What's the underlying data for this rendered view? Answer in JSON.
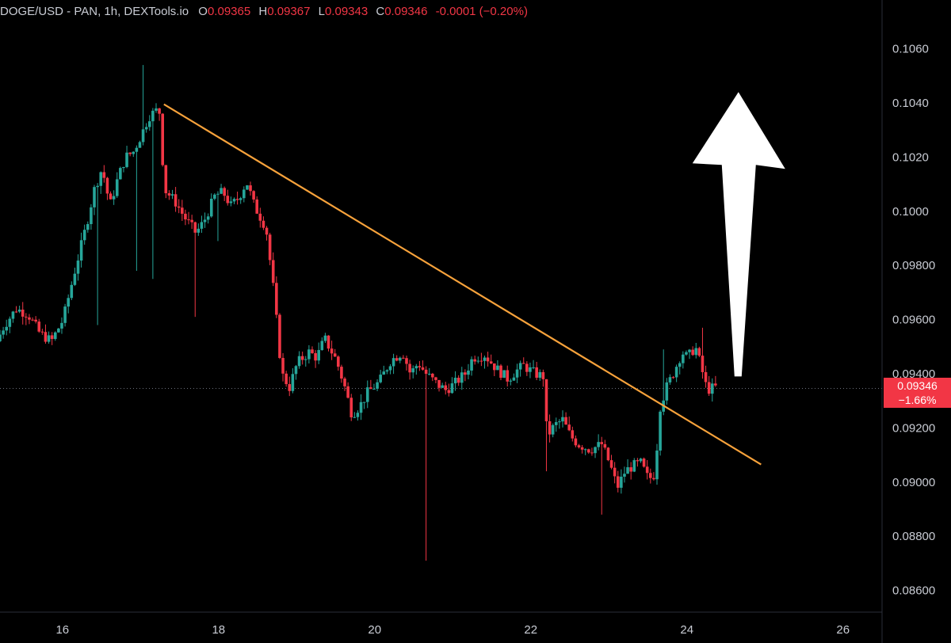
{
  "header": {
    "symbol": "DOGE/USD - PAN, 1h, DEXTools.io",
    "o_label": "O",
    "o_value": "0.09365",
    "h_label": "H",
    "h_value": "0.09367",
    "l_label": "L",
    "l_value": "0.09343",
    "c_label": "C",
    "c_value": "0.09346",
    "change": "-0.0001 (−0.20%)"
  },
  "price_tag": {
    "price": "0.09346",
    "change": "−1.66%"
  },
  "colors": {
    "up": "#26a69a",
    "down": "#f23645",
    "trendline": "#f7a23b",
    "arrow": "#ffffff",
    "axis_text": "#c9ccd4"
  },
  "chart_data": {
    "type": "candlestick",
    "x_axis": {
      "ticks": [
        "16",
        "18",
        "20",
        "22",
        "24",
        "26"
      ],
      "tick_values": [
        16,
        18,
        20,
        22,
        24,
        26
      ],
      "range": [
        15.2,
        26.5
      ]
    },
    "y_axis": {
      "ticks": [
        "0.1060",
        "0.1040",
        "0.1020",
        "0.1000",
        "0.09800",
        "0.09600",
        "0.09400",
        "0.09200",
        "0.09000",
        "0.08800",
        "0.08600"
      ],
      "tick_values": [
        0.106,
        0.104,
        0.102,
        0.1,
        0.098,
        0.096,
        0.094,
        0.092,
        0.09,
        0.088,
        0.086
      ],
      "range": [
        0.0852,
        0.1078
      ]
    },
    "last_price": 0.09346,
    "anchors": [
      [
        15.2,
        0.0952
      ],
      [
        15.3,
        0.0958
      ],
      [
        15.45,
        0.0964
      ],
      [
        15.6,
        0.0962
      ],
      [
        15.75,
        0.0955
      ],
      [
        15.9,
        0.0952
      ],
      [
        16.05,
        0.096
      ],
      [
        16.2,
        0.0978
      ],
      [
        16.35,
        0.0995
      ],
      [
        16.45,
        0.1008
      ],
      [
        16.55,
        0.1016
      ],
      [
        16.65,
        0.1002
      ],
      [
        16.75,
        0.1012
      ],
      [
        16.85,
        0.102
      ],
      [
        16.95,
        0.1022
      ],
      [
        17.05,
        0.1028
      ],
      [
        17.15,
        0.1035
      ],
      [
        17.28,
        0.1038
      ],
      [
        17.35,
        0.1008
      ],
      [
        17.5,
        0.1003
      ],
      [
        17.6,
        0.0998
      ],
      [
        17.75,
        0.0992
      ],
      [
        17.85,
        0.0996
      ],
      [
        18.0,
        0.1006
      ],
      [
        18.1,
        0.1007
      ],
      [
        18.2,
        0.1002
      ],
      [
        18.3,
        0.1005
      ],
      [
        18.4,
        0.1011
      ],
      [
        18.5,
        0.1002
      ],
      [
        18.65,
        0.0994
      ],
      [
        18.75,
        0.097
      ],
      [
        18.85,
        0.094
      ],
      [
        18.95,
        0.0935
      ],
      [
        19.05,
        0.0944
      ],
      [
        19.2,
        0.0948
      ],
      [
        19.3,
        0.0946
      ],
      [
        19.4,
        0.0953
      ],
      [
        19.55,
        0.0945
      ],
      [
        19.65,
        0.0936
      ],
      [
        19.75,
        0.0925
      ],
      [
        19.85,
        0.0928
      ],
      [
        19.95,
        0.0933
      ],
      [
        20.1,
        0.0937
      ],
      [
        20.25,
        0.0945
      ],
      [
        20.4,
        0.0948
      ],
      [
        20.5,
        0.094
      ],
      [
        20.6,
        0.0944
      ],
      [
        20.7,
        0.094
      ],
      [
        20.85,
        0.0936
      ],
      [
        20.95,
        0.0934
      ],
      [
        21.05,
        0.0936
      ],
      [
        21.2,
        0.094
      ],
      [
        21.3,
        0.0946
      ],
      [
        21.45,
        0.0947
      ],
      [
        21.6,
        0.0942
      ],
      [
        21.75,
        0.0938
      ],
      [
        21.85,
        0.0941
      ],
      [
        21.95,
        0.0943
      ],
      [
        22.1,
        0.094
      ],
      [
        22.2,
        0.0939
      ],
      [
        22.25,
        0.0917
      ],
      [
        22.35,
        0.0921
      ],
      [
        22.45,
        0.0923
      ],
      [
        22.55,
        0.0917
      ],
      [
        22.65,
        0.0914
      ],
      [
        22.8,
        0.0912
      ],
      [
        22.95,
        0.0914
      ],
      [
        23.05,
        0.0907
      ],
      [
        23.15,
        0.0898
      ],
      [
        23.25,
        0.0904
      ],
      [
        23.35,
        0.0906
      ],
      [
        23.45,
        0.0907
      ],
      [
        23.55,
        0.0901
      ],
      [
        23.63,
        0.0903
      ],
      [
        23.7,
        0.0928
      ],
      [
        23.78,
        0.0935
      ],
      [
        23.88,
        0.0941
      ],
      [
        23.98,
        0.0948
      ],
      [
        24.05,
        0.0946
      ],
      [
        24.15,
        0.095
      ],
      [
        24.22,
        0.0943
      ],
      [
        24.3,
        0.0934
      ],
      [
        24.4,
        0.0935
      ]
    ],
    "trendline": {
      "start": [
        17.3,
        0.10395
      ],
      "end": [
        24.95,
        0.09065
      ]
    },
    "annotation": {
      "type": "arrow-up",
      "base": [
        24.65,
        0.0939
      ],
      "tip": [
        24.65,
        0.1044
      ]
    }
  }
}
